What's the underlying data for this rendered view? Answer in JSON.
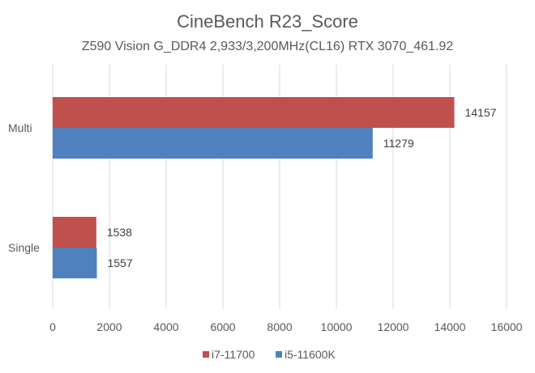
{
  "chart_data": {
    "type": "bar",
    "orientation": "horizontal",
    "title": "CineBench R23_Score",
    "subtitle": "Z590 Vision G_DDR4 2,933/3,200MHz(CL16) RTX 3070_461.92",
    "categories": [
      "Multi",
      "Single"
    ],
    "series": [
      {
        "name": "i7-11700",
        "color": "#c0504d",
        "values": [
          14157,
          1538
        ]
      },
      {
        "name": "i5-11600K",
        "color": "#4f81bd",
        "values": [
          11279,
          1557
        ]
      }
    ],
    "xlim": [
      0,
      16000
    ],
    "xticks": [
      "0",
      "2000",
      "4000",
      "6000",
      "8000",
      "10000",
      "12000",
      "14000",
      "16000"
    ],
    "grid": true,
    "legend": "bottom"
  }
}
